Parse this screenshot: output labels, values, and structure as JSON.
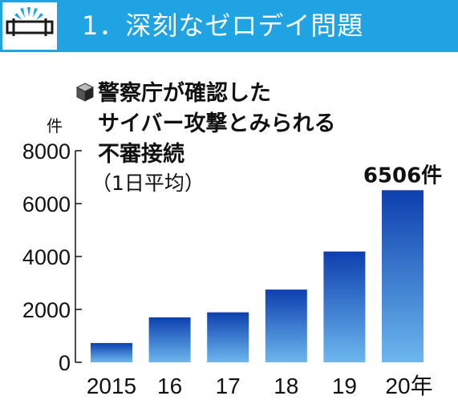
{
  "header": {
    "title": "1．深刻なゼロデイ問題",
    "icon": "leaking-pipe-icon",
    "background_color": "#1fa3e3"
  },
  "chart_data": {
    "type": "bar",
    "title_lines": [
      "警察庁が確認した",
      "サイバー攻撃とみられる",
      "不審接続"
    ],
    "subtitle": "（1日平均）",
    "unit": "件",
    "categories": [
      "2015",
      "16",
      "17",
      "18",
      "19",
      "20年"
    ],
    "values": [
      730,
      1700,
      1890,
      2750,
      4190,
      6506
    ],
    "ylim": [
      0,
      8000
    ],
    "yticks": [
      "0",
      "2000",
      "4000",
      "6000",
      "8000"
    ],
    "highlight_label": "6506件",
    "bar_color_top": "#0d3fae",
    "bar_color_bottom": "#6cb7ee",
    "title_icon": "cube-icon"
  }
}
